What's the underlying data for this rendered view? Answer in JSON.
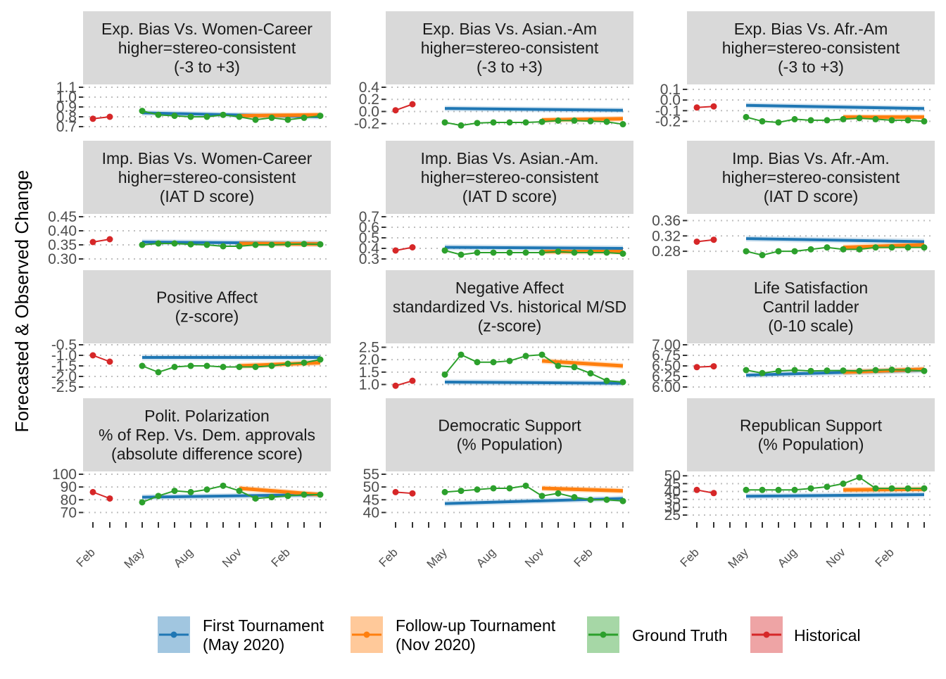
{
  "chart_data": {
    "type": "line",
    "ylabel": "Forecasted & Observed Change",
    "xlabel": "",
    "x_ticks": [
      "Feb",
      "May",
      "Aug",
      "Nov",
      "Feb"
    ],
    "legend": {
      "position": "bottom",
      "items": [
        {
          "key": "first",
          "line1": "First Tournament",
          "line2": "(May 2020)",
          "color": "#1f77b4"
        },
        {
          "key": "followup",
          "line1": "Follow-up Tournament",
          "line2": "(Nov 2020)",
          "color": "#ff7f0e"
        },
        {
          "key": "ground",
          "line1": "Ground Truth",
          "line2": "",
          "color": "#2ca02c"
        },
        {
          "key": "historical",
          "line1": "Historical",
          "line2": "",
          "color": "#d62728"
        }
      ]
    },
    "grid": true,
    "panels": [
      {
        "title": [
          "Exp. Bias Vs. Women-Career",
          "higher=stereo-consistent",
          "(-3 to +3)"
        ],
        "ticks": [
          "0.7",
          "0.8",
          "0.9",
          "1.0",
          "1.1"
        ],
        "ylim": [
          0.7,
          1.1
        ],
        "historical": [
          0.78,
          0.8
        ],
        "ground": [
          0.86,
          0.82,
          0.81,
          0.8,
          0.8,
          0.82,
          0.8,
          0.77,
          0.79,
          0.77,
          0.79,
          0.81
        ],
        "first_mean": [
          0.84,
          0.8
        ],
        "followup_mean": [
          0.81,
          0.82
        ]
      },
      {
        "title": [
          "Exp. Bias Vs. Asian.-Am",
          "higher=stereo-consistent",
          "(-3 to +3)"
        ],
        "ticks": [
          "-0.2",
          "0.0",
          "0.2",
          "0.4"
        ],
        "ylim": [
          -0.25,
          0.4
        ],
        "historical": [
          0.02,
          0.12
        ],
        "ground": [
          -0.18,
          -0.23,
          -0.19,
          -0.18,
          -0.18,
          -0.18,
          -0.17,
          -0.15,
          -0.15,
          -0.16,
          -0.17,
          -0.21
        ],
        "first_mean": [
          0.05,
          0.02
        ],
        "followup_mean": [
          -0.14,
          -0.12
        ]
      },
      {
        "title": [
          "Exp. Bias Vs. Afr.-Am",
          "higher=stereo-consistent",
          "(-3 to +3)"
        ],
        "ticks": [
          "-0.2",
          "-0.1",
          "0.0",
          "0.1"
        ],
        "ylim": [
          -0.25,
          0.12
        ],
        "historical": [
          -0.07,
          -0.06
        ],
        "ground": [
          -0.16,
          -0.2,
          -0.21,
          -0.18,
          -0.19,
          -0.19,
          -0.18,
          -0.17,
          -0.18,
          -0.19,
          -0.19,
          -0.2
        ],
        "first_mean": [
          -0.05,
          -0.08
        ],
        "followup_mean": [
          -0.16,
          -0.16
        ]
      },
      {
        "title": [
          "Imp. Bias Vs. Women-Career",
          "higher=stereo-consistent",
          "(IAT D score)"
        ],
        "ticks": [
          "0.30",
          "0.35",
          "0.40",
          "0.45"
        ],
        "ylim": [
          0.3,
          0.45
        ],
        "historical": [
          0.36,
          0.37
        ],
        "ground": [
          0.35,
          0.355,
          0.355,
          0.352,
          0.35,
          0.345,
          0.345,
          0.35,
          0.35,
          0.352,
          0.353,
          0.352
        ],
        "first_mean": [
          0.36,
          0.355
        ],
        "followup_mean": [
          0.355,
          0.353
        ]
      },
      {
        "title": [
          "Imp. Bias Vs. Asian.-Am.",
          "higher=stereo-consistent",
          "(IAT D score)"
        ],
        "ticks": [
          "0.3",
          "0.4",
          "0.5",
          "0.6",
          "0.7"
        ],
        "ylim": [
          0.3,
          0.7
        ],
        "historical": [
          0.38,
          0.41
        ],
        "ground": [
          0.38,
          0.34,
          0.36,
          0.36,
          0.36,
          0.36,
          0.36,
          0.37,
          0.36,
          0.36,
          0.36,
          0.35
        ],
        "first_mean": [
          0.41,
          0.4
        ],
        "followup_mean": [
          0.37,
          0.37
        ]
      },
      {
        "title": [
          "Imp. Bias Vs. Afr.-Am.",
          "higher=stereo-consistent",
          "(IAT D score)"
        ],
        "ticks": [
          "0.28",
          "0.32",
          "0.36"
        ],
        "ylim": [
          0.26,
          0.37
        ],
        "historical": [
          0.305,
          0.31
        ],
        "ground": [
          0.28,
          0.27,
          0.28,
          0.28,
          0.285,
          0.29,
          0.285,
          0.285,
          0.29,
          0.29,
          0.29,
          0.29
        ],
        "first_mean": [
          0.313,
          0.305
        ],
        "followup_mean": [
          0.29,
          0.297
        ]
      },
      {
        "title": [
          "Positive Affect",
          "(z-score)"
        ],
        "ticks": [
          "-2.5",
          "-2.0",
          "-1.5",
          "-1.0",
          "-0.5"
        ],
        "ylim": [
          -2.5,
          -0.5
        ],
        "historical": [
          -1.0,
          -1.3
        ],
        "ground": [
          -1.5,
          -1.8,
          -1.55,
          -1.5,
          -1.5,
          -1.55,
          -1.55,
          -1.55,
          -1.5,
          -1.4,
          -1.35,
          -1.2
        ],
        "first_mean": [
          -1.1,
          -1.1
        ],
        "followup_mean": [
          -1.5,
          -1.35
        ]
      },
      {
        "title": [
          "Negative Affect",
          "standardized Vs. historical M/SD",
          "(z-score)"
        ],
        "ticks": [
          "1.0",
          "1.5",
          "2.0",
          "2.5"
        ],
        "ylim": [
          0.9,
          2.6
        ],
        "historical": [
          0.95,
          1.15
        ],
        "ground": [
          1.4,
          2.2,
          1.9,
          1.9,
          1.95,
          2.15,
          2.2,
          1.75,
          1.7,
          1.45,
          1.15,
          1.1
        ],
        "first_mean": [
          1.1,
          1.05
        ],
        "followup_mean": [
          1.95,
          1.75
        ]
      },
      {
        "title": [
          "Life Satisfaction",
          "Cantril ladder",
          "(0-10 scale)"
        ],
        "ticks": [
          "6.00",
          "6.25",
          "6.50",
          "6.75",
          "7.00"
        ],
        "ylim": [
          6.0,
          7.0
        ],
        "historical": [
          6.47,
          6.49
        ],
        "ground": [
          6.4,
          6.33,
          6.38,
          6.4,
          6.38,
          6.39,
          6.39,
          6.38,
          6.4,
          6.41,
          6.4,
          6.38
        ],
        "first_mean": [
          6.28,
          6.4
        ],
        "followup_mean": [
          6.35,
          6.42
        ]
      },
      {
        "title": [
          "Polit. Polarization",
          "% of Rep. Vs. Dem. approvals",
          "(absolute difference score)"
        ],
        "ticks": [
          "70",
          "80",
          "90",
          "100"
        ],
        "ylim": [
          68,
          100
        ],
        "historical": [
          86,
          81
        ],
        "ground": [
          78,
          83,
          87,
          86,
          88,
          91,
          87,
          81,
          82,
          83,
          84,
          84
        ],
        "first_mean": [
          82,
          84
        ],
        "followup_mean": [
          89,
          84
        ]
      },
      {
        "title": [
          "Democratic Support",
          "(% Population)"
        ],
        "ticks": [
          "40",
          "45",
          "50",
          "55"
        ],
        "ylim": [
          39,
          55
        ],
        "historical": [
          48,
          47.5
        ],
        "ground": [
          48,
          48.5,
          49,
          49.5,
          49.5,
          50.5,
          46.5,
          47.5,
          46,
          45,
          45,
          44.5
        ],
        "first_mean": [
          43.5,
          45.5
        ],
        "followup_mean": [
          49.5,
          48.5
        ]
      },
      {
        "title": [
          "Republican Support",
          "(% Population)"
        ],
        "ticks": [
          "25",
          "30",
          "35",
          "40",
          "45",
          "50"
        ],
        "ylim": [
          25,
          51
        ],
        "historical": [
          41,
          39
        ],
        "ground": [
          41,
          41,
          41,
          41,
          42,
          43,
          45,
          49,
          42,
          42,
          42,
          42
        ],
        "first_mean": [
          37,
          38
        ],
        "followup_mean": [
          41,
          41.5
        ]
      }
    ]
  }
}
